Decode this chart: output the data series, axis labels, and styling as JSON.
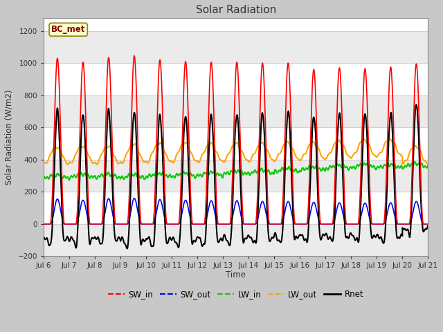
{
  "title": "Solar Radiation",
  "ylabel": "Solar Radiation (W/m2)",
  "xlabel": "Time",
  "station_label": "BC_met",
  "ylim": [
    -200,
    1280
  ],
  "yticks": [
    -200,
    0,
    200,
    400,
    600,
    800,
    1000,
    1200
  ],
  "start_day": 6,
  "n_days": 15,
  "colors": {
    "SW_in": "#ff0000",
    "SW_out": "#0000ff",
    "LW_in": "#00cc00",
    "LW_out": "#ffa500",
    "Rnet": "#000000"
  },
  "line_widths": {
    "SW_in": 1.2,
    "SW_out": 1.2,
    "LW_in": 1.5,
    "LW_out": 1.5,
    "Rnet": 1.5
  },
  "fig_bg": "#c8c8c8",
  "plot_bg": "#ffffff",
  "grid_color": "#d0d0d0",
  "sw_in_peaks": [
    1030,
    1005,
    1035,
    1045,
    1020,
    1010,
    1005,
    1005,
    1000,
    1000,
    960,
    970,
    965,
    975,
    995
  ],
  "sw_out_peaks": [
    155,
    148,
    158,
    160,
    152,
    148,
    145,
    145,
    140,
    140,
    135,
    132,
    130,
    132,
    140
  ],
  "lw_in_base": [
    285,
    290,
    290,
    285,
    295,
    295,
    300,
    310,
    315,
    325,
    335,
    345,
    350,
    350,
    355
  ],
  "lw_out_base": [
    370,
    375,
    370,
    378,
    382,
    385,
    388,
    390,
    393,
    398,
    402,
    412,
    418,
    422,
    375
  ],
  "lw_out_amp": [
    110,
    110,
    115,
    118,
    120,
    118,
    112,
    110,
    108,
    108,
    105,
    105,
    105,
    105,
    110
  ]
}
